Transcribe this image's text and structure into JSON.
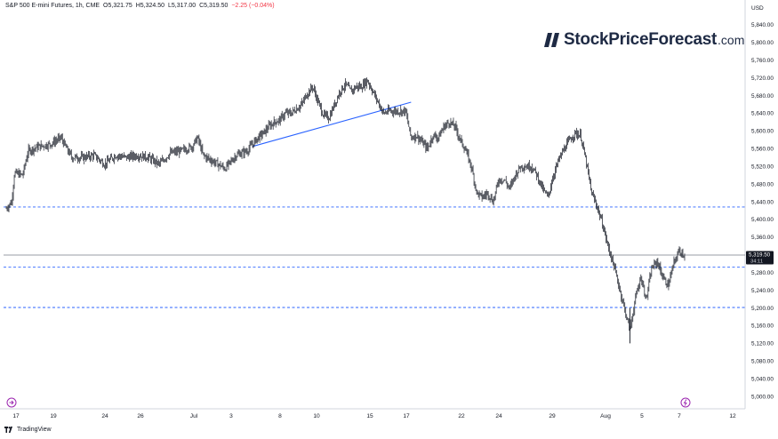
{
  "header": {
    "symbol": "S&P 500 E-mini Futures, 1h, CME",
    "open": "O5,321.75",
    "high": "H5,324.50",
    "low": "L5,317.00",
    "close": "C5,319.50",
    "change": "−2.25 (−0.04%)"
  },
  "brand": {
    "name": "StockPriceForecast",
    "domain": ".com"
  },
  "footer": {
    "logo_text": "TradingView"
  },
  "price_axis": {
    "currency": "USD"
  },
  "last_price": {
    "price": "5,319.50",
    "countdown": "34:11"
  },
  "colors": {
    "up": "#089981",
    "down": "#f23645",
    "trendline": "#2962ff",
    "levels": "#2962ff",
    "candle": "#131722"
  },
  "icons": [
    "tv-logo-icon",
    "goto-start-icon",
    "goto-realtime-icon"
  ],
  "chart_data": {
    "type": "line",
    "title": "S&P 500 E-mini Futures, 1h, CME",
    "xlabel": "",
    "ylabel": "",
    "x_ticks": [
      "17",
      "19",
      "24",
      "26",
      "Jul",
      "3",
      "8",
      "10",
      "15",
      "17",
      "22",
      "24",
      "29",
      "Aug",
      "5",
      "7",
      "12"
    ],
    "y_ticks": [
      5000,
      5040,
      5080,
      5120,
      5160,
      5200,
      5240,
      5280,
      5320,
      5360,
      5400,
      5440,
      5480,
      5520,
      5560,
      5600,
      5640,
      5680,
      5720,
      5760,
      5800,
      5840
    ],
    "y_tick_labels": [
      "5,000.00",
      "5,040.00",
      "5,080.00",
      "5,120.00",
      "5,160.00",
      "5,200.00",
      "5,240.00",
      "5,280.00",
      "5,320.00",
      "5,360.00",
      "5,400.00",
      "5,440.00",
      "5,480.00",
      "5,520.00",
      "5,560.00",
      "5,600.00",
      "5,640.00",
      "5,680.00",
      "5,720.00",
      "5,760.00",
      "5,800.00",
      "5,840.00"
    ],
    "ylim": [
      4972,
      5896
    ],
    "series": [
      {
        "values": [
          [
            0,
            5425
          ],
          [
            1,
            5440
          ],
          [
            1.5,
            5505
          ],
          [
            3,
            5500
          ],
          [
            4,
            5555
          ],
          [
            6,
            5565
          ],
          [
            8,
            5570
          ],
          [
            10,
            5585
          ],
          [
            11,
            5560
          ],
          [
            12,
            5540
          ],
          [
            14,
            5540
          ],
          [
            16,
            5545
          ],
          [
            18,
            5525
          ],
          [
            20,
            5545
          ],
          [
            22,
            5540
          ],
          [
            24,
            5545
          ],
          [
            26,
            5540
          ],
          [
            28,
            5525
          ],
          [
            30,
            5550
          ],
          [
            32,
            5555
          ],
          [
            34,
            5565
          ],
          [
            35,
            5585
          ],
          [
            36,
            5545
          ],
          [
            38,
            5530
          ],
          [
            40,
            5515
          ],
          [
            41,
            5530
          ],
          [
            42,
            5545
          ],
          [
            43,
            5550
          ],
          [
            44,
            5555
          ],
          [
            45,
            5570
          ],
          [
            46,
            5585
          ],
          [
            47,
            5595
          ],
          [
            48,
            5610
          ],
          [
            49,
            5620
          ],
          [
            50,
            5625
          ],
          [
            51,
            5640
          ],
          [
            52,
            5640
          ],
          [
            53,
            5650
          ],
          [
            54,
            5660
          ],
          [
            55,
            5685
          ],
          [
            56,
            5700
          ],
          [
            57,
            5665
          ],
          [
            58,
            5635
          ],
          [
            59,
            5630
          ],
          [
            60,
            5660
          ],
          [
            61,
            5690
          ],
          [
            62,
            5705
          ],
          [
            63,
            5690
          ],
          [
            64,
            5700
          ],
          [
            65,
            5700
          ],
          [
            66,
            5715
          ],
          [
            67,
            5690
          ],
          [
            68,
            5665
          ],
          [
            69,
            5640
          ],
          [
            70,
            5645
          ],
          [
            71,
            5645
          ],
          [
            72,
            5645
          ],
          [
            73,
            5645
          ],
          [
            74,
            5585
          ],
          [
            75,
            5590
          ],
          [
            76,
            5575
          ],
          [
            77,
            5560
          ],
          [
            78,
            5590
          ],
          [
            79,
            5585
          ],
          [
            80,
            5610
          ],
          [
            81,
            5620
          ],
          [
            82,
            5610
          ],
          [
            83,
            5580
          ],
          [
            84,
            5555
          ],
          [
            85,
            5520
          ],
          [
            86,
            5460
          ],
          [
            87,
            5450
          ],
          [
            88,
            5460
          ],
          [
            89,
            5440
          ],
          [
            90,
            5490
          ],
          [
            91,
            5490
          ],
          [
            92,
            5470
          ],
          [
            93,
            5500
          ],
          [
            94,
            5520
          ],
          [
            95,
            5520
          ],
          [
            96,
            5520
          ],
          [
            97,
            5500
          ],
          [
            98,
            5470
          ],
          [
            99,
            5450
          ],
          [
            100,
            5500
          ],
          [
            101,
            5535
          ],
          [
            102,
            5560
          ],
          [
            103,
            5580
          ],
          [
            104,
            5595
          ],
          [
            105,
            5590
          ],
          [
            106,
            5530
          ],
          [
            107,
            5460
          ],
          [
            108,
            5430
          ],
          [
            109,
            5390
          ],
          [
            110,
            5340
          ],
          [
            111,
            5300
          ],
          [
            112,
            5250
          ],
          [
            113,
            5200
          ],
          [
            114,
            5150
          ],
          [
            115,
            5220
          ],
          [
            116,
            5270
          ],
          [
            117,
            5220
          ],
          [
            118,
            5290
          ],
          [
            119,
            5305
          ],
          [
            120,
            5270
          ],
          [
            121,
            5250
          ],
          [
            122,
            5300
          ],
          [
            123,
            5330
          ],
          [
            124,
            5319.5
          ]
        ]
      }
    ],
    "trendline": {
      "points": [
        [
          45,
          5565
        ],
        [
          74,
          5665
        ]
      ]
    },
    "horizontal_levels": [
      5428,
      5292,
      5201
    ],
    "last_price_line": 5319.5,
    "grid": false,
    "legend": "none"
  }
}
